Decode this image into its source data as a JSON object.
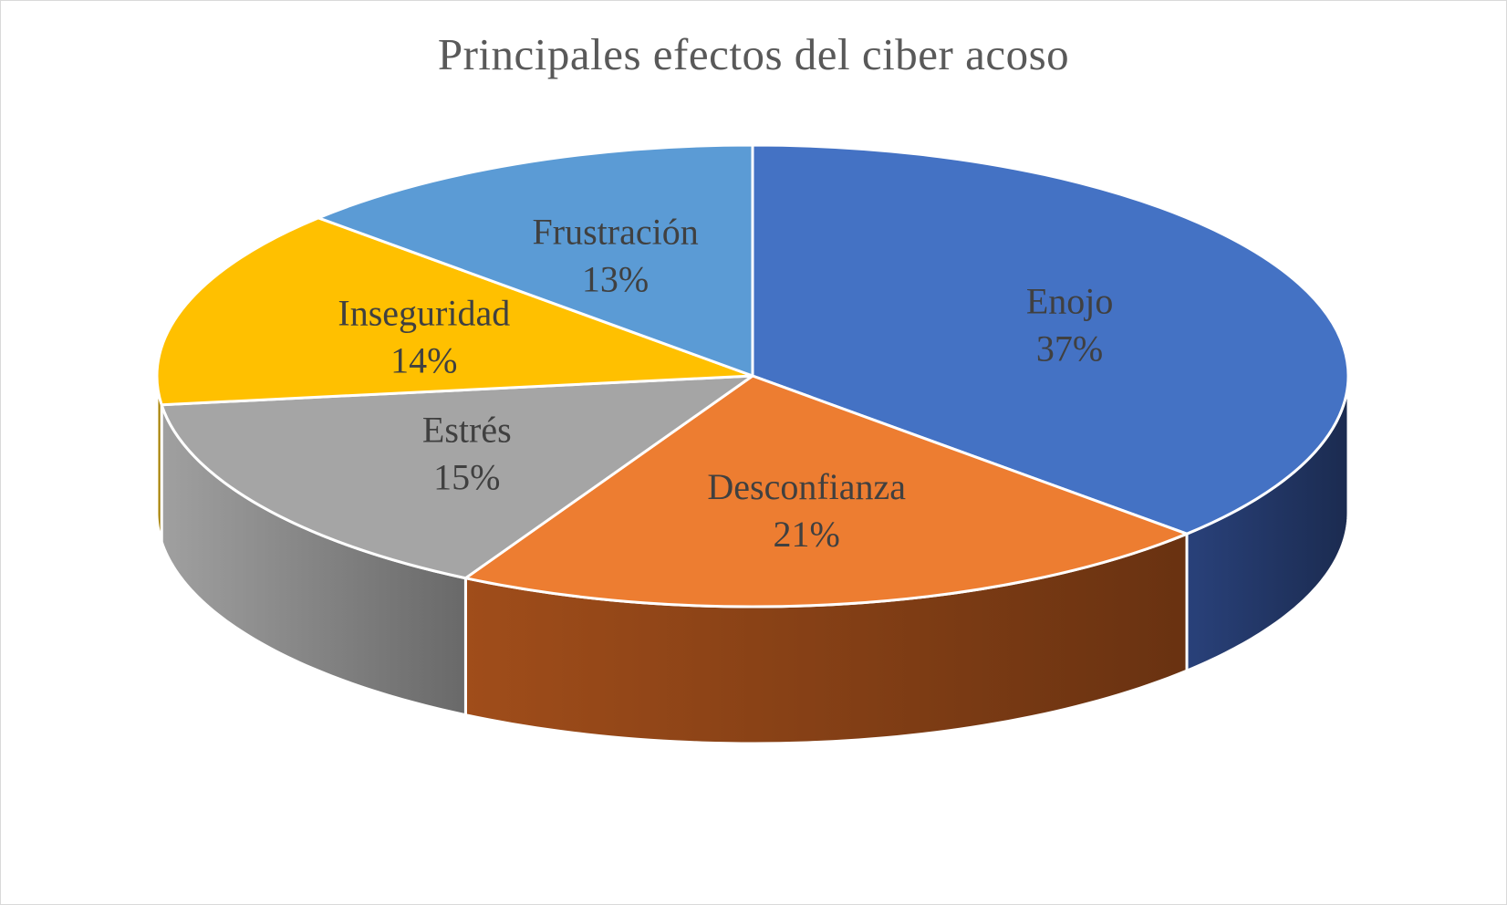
{
  "chart_data": {
    "type": "pie",
    "title": "Principales efectos del ciber acoso",
    "categories": [
      "Enojo",
      "Desconfianza",
      "Estrés",
      "Inseguridad",
      "Frustración"
    ],
    "values": [
      37,
      21,
      15,
      14,
      13
    ],
    "data_labels": [
      "37%",
      "21%",
      "15%",
      "14%",
      "13%"
    ],
    "colors": [
      "#4472c4",
      "#ed7d31",
      "#a5a5a5",
      "#ffc000",
      "#5b9bd5"
    ],
    "side_colors": [
      "#1c2d54",
      "#6e3512",
      "#6e6e6e",
      "#8a6a00",
      "#2f5f8c"
    ],
    "style": "3d",
    "legend": "none"
  }
}
